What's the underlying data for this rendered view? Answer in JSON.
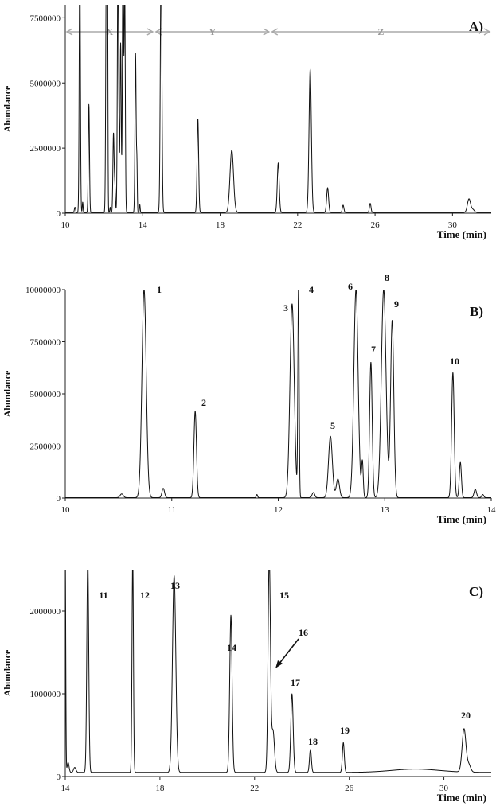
{
  "chart_data": [
    {
      "type": "line",
      "panel_label": "A)",
      "ylabel": "Abundance",
      "xlabel": "Time (min)",
      "xlim": [
        10,
        32
      ],
      "ylim": [
        0,
        8000000
      ],
      "x_ticks": [
        "10",
        "14",
        "18",
        "22",
        "26",
        "30"
      ],
      "y_ticks": [
        "0",
        "2500000",
        "5000000",
        "7500000"
      ],
      "regions": [
        {
          "label": "X",
          "x": [
            10,
            14.6
          ]
        },
        {
          "label": "Y",
          "x": [
            14.6,
            20.6
          ]
        },
        {
          "label": "Z",
          "x": [
            20.6,
            32
          ]
        }
      ],
      "baseline": 30000,
      "peaks": [
        {
          "x": 10.5,
          "y": 200000,
          "w": 0.03
        },
        {
          "x": 10.75,
          "y": 10000000,
          "w": 0.03
        },
        {
          "x": 10.9,
          "y": 400000,
          "w": 0.02
        },
        {
          "x": 11.22,
          "y": 4150000,
          "w": 0.03
        },
        {
          "x": 12.12,
          "y": 9500000,
          "w": 0.03
        },
        {
          "x": 12.18,
          "y": 10000000,
          "w": 0.02
        },
        {
          "x": 12.32,
          "y": 200000,
          "w": 0.02
        },
        {
          "x": 12.49,
          "y": 3000000,
          "w": 0.03
        },
        {
          "x": 12.56,
          "y": 1000000,
          "w": 0.03
        },
        {
          "x": 12.72,
          "y": 10000000,
          "w": 0.03
        },
        {
          "x": 12.78,
          "y": 1900000,
          "w": 0.02
        },
        {
          "x": 12.86,
          "y": 6500000,
          "w": 0.03
        },
        {
          "x": 12.98,
          "y": 10000000,
          "w": 0.03
        },
        {
          "x": 13.07,
          "y": 8600000,
          "w": 0.03
        },
        {
          "x": 13.63,
          "y": 6100000,
          "w": 0.03
        },
        {
          "x": 13.7,
          "y": 1800000,
          "w": 0.02
        },
        {
          "x": 13.85,
          "y": 300000,
          "w": 0.02
        },
        {
          "x": 14.95,
          "y": 10000000,
          "w": 0.04
        },
        {
          "x": 16.85,
          "y": 3600000,
          "w": 0.04
        },
        {
          "x": 18.6,
          "y": 2400000,
          "w": 0.09
        },
        {
          "x": 21.0,
          "y": 1900000,
          "w": 0.05
        },
        {
          "x": 22.65,
          "y": 5500000,
          "w": 0.06
        },
        {
          "x": 23.55,
          "y": 950000,
          "w": 0.05
        },
        {
          "x": 24.35,
          "y": 280000,
          "w": 0.04
        },
        {
          "x": 25.75,
          "y": 350000,
          "w": 0.04
        },
        {
          "x": 30.85,
          "y": 520000,
          "w": 0.08
        },
        {
          "x": 31.05,
          "y": 110000,
          "w": 0.08
        }
      ]
    },
    {
      "type": "line",
      "panel_label": "B)",
      "ylabel": "Abundance",
      "xlabel": "Time (min)",
      "xlim": [
        10,
        14
      ],
      "ylim": [
        0,
        10000000
      ],
      "x_ticks": [
        "10",
        "11",
        "12",
        "13",
        "14"
      ],
      "y_ticks": [
        "0",
        "2500000",
        "5000000",
        "7500000",
        "10000000"
      ],
      "baseline": 20000,
      "peaks": [
        {
          "x": 10.53,
          "y": 180000,
          "w": 0.015
        },
        {
          "x": 10.74,
          "y": 10000000,
          "w": 0.02,
          "label": "1"
        },
        {
          "x": 10.92,
          "y": 450000,
          "w": 0.012
        },
        {
          "x": 11.22,
          "y": 4150000,
          "w": 0.012,
          "label": "2"
        },
        {
          "x": 11.8,
          "y": 150000,
          "w": 0.006
        },
        {
          "x": 12.13,
          "y": 9300000,
          "w": 0.02,
          "label": "3"
        },
        {
          "x": 12.19,
          "y": 10000000,
          "w": 0.006,
          "label": "4"
        },
        {
          "x": 12.33,
          "y": 250000,
          "w": 0.012
        },
        {
          "x": 12.49,
          "y": 2950000,
          "w": 0.018,
          "label": "5"
        },
        {
          "x": 12.56,
          "y": 900000,
          "w": 0.015
        },
        {
          "x": 12.73,
          "y": 10000000,
          "w": 0.02,
          "label": "6"
        },
        {
          "x": 12.79,
          "y": 1700000,
          "w": 0.008
        },
        {
          "x": 12.87,
          "y": 6500000,
          "w": 0.012,
          "label": "7"
        },
        {
          "x": 12.99,
          "y": 10000000,
          "w": 0.022,
          "label": "8"
        },
        {
          "x": 13.07,
          "y": 8500000,
          "w": 0.015,
          "label": "9"
        },
        {
          "x": 13.64,
          "y": 6000000,
          "w": 0.012,
          "label": "10"
        },
        {
          "x": 13.71,
          "y": 1700000,
          "w": 0.01
        },
        {
          "x": 13.85,
          "y": 400000,
          "w": 0.012
        },
        {
          "x": 13.92,
          "y": 150000,
          "w": 0.01
        }
      ]
    },
    {
      "type": "line",
      "panel_label": "C)",
      "ylabel": "Abundance",
      "xlabel": "Time (min)",
      "xlim": [
        14,
        32
      ],
      "ylim": [
        0,
        2500000
      ],
      "x_ticks": [
        "14",
        "18",
        "22",
        "26",
        "30"
      ],
      "y_ticks": [
        "0",
        "1000000",
        "2000000"
      ],
      "baseline": 50000,
      "peaks": [
        {
          "x": 14.0,
          "y": 2600000,
          "w": 0.02
        },
        {
          "x": 14.12,
          "y": 120000,
          "w": 0.04
        },
        {
          "x": 14.4,
          "y": 60000,
          "w": 0.05
        },
        {
          "x": 14.95,
          "y": 2600000,
          "w": 0.04,
          "label": "11"
        },
        {
          "x": 16.85,
          "y": 2600000,
          "w": 0.03,
          "label": "12"
        },
        {
          "x": 18.6,
          "y": 2380000,
          "w": 0.07,
          "label": "13"
        },
        {
          "x": 21.0,
          "y": 1900000,
          "w": 0.05,
          "label": "14"
        },
        {
          "x": 22.62,
          "y": 2600000,
          "w": 0.05,
          "label": "15"
        },
        {
          "x": 22.78,
          "y": 500000,
          "w": 0.06,
          "label": "16"
        },
        {
          "x": 23.58,
          "y": 950000,
          "w": 0.05,
          "label": "17"
        },
        {
          "x": 24.36,
          "y": 280000,
          "w": 0.04,
          "label": "18"
        },
        {
          "x": 25.75,
          "y": 360000,
          "w": 0.04,
          "label": "19"
        },
        {
          "x": 28.8,
          "y": 40000,
          "w": 1.0
        },
        {
          "x": 30.85,
          "y": 520000,
          "w": 0.08,
          "label": "20"
        },
        {
          "x": 31.05,
          "y": 90000,
          "w": 0.08
        }
      ]
    }
  ]
}
